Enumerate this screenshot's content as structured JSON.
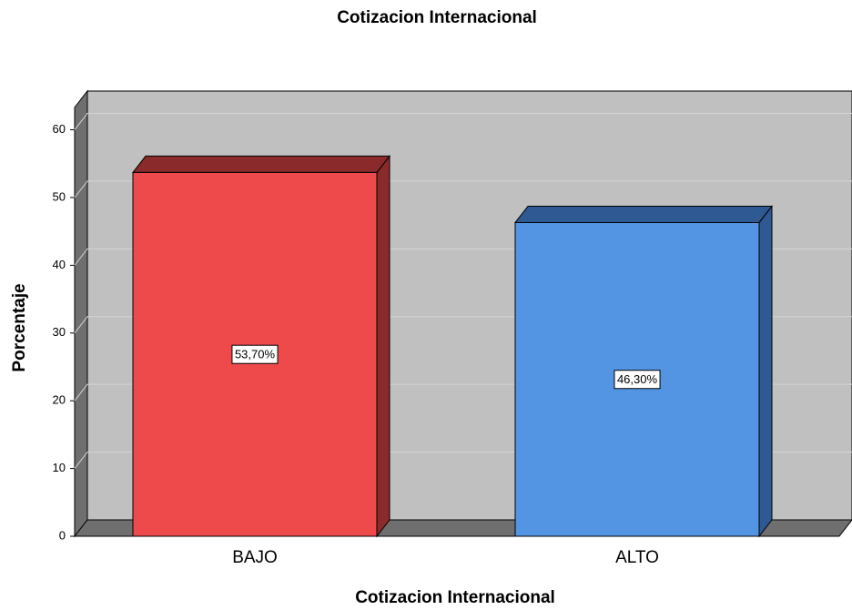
{
  "chart_data": {
    "type": "bar3d",
    "title": "Cotizacion Internacional",
    "x_label": "Cotizacion Internacional",
    "y_label": "Porcentaje",
    "categories": [
      "BAJO",
      "ALTO"
    ],
    "values": [
      53.7,
      46.3
    ],
    "value_labels": [
      "53,70%",
      "46,30%"
    ],
    "colors": [
      "#ee4a4b",
      "#5495e3"
    ],
    "side_colors": [
      "#8a2a2a",
      "#2f5993"
    ],
    "ylim": [
      0,
      63.3
    ],
    "yticks": [
      0,
      10,
      20,
      30,
      40,
      50,
      60
    ],
    "grid": true
  }
}
